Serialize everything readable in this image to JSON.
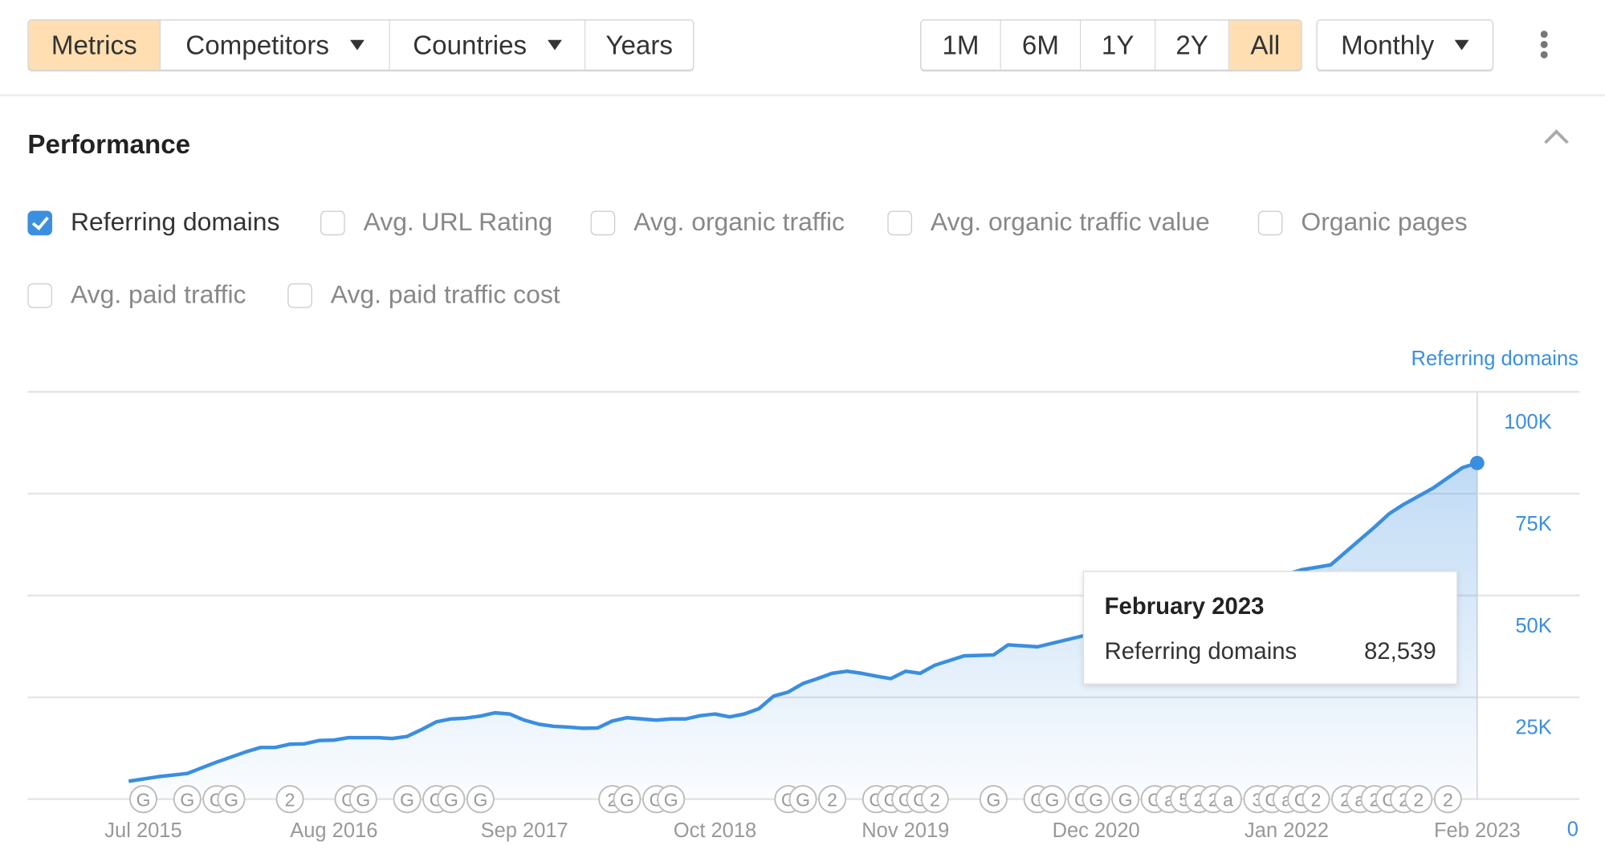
{
  "toolbar": {
    "view_tabs": [
      {
        "label": "Metrics",
        "active": true
      },
      {
        "label": "Competitors",
        "dropdown": true
      },
      {
        "label": "Countries",
        "dropdown": true
      },
      {
        "label": "Years"
      }
    ],
    "ranges": [
      {
        "label": "1M"
      },
      {
        "label": "6M"
      },
      {
        "label": "1Y"
      },
      {
        "label": "2Y"
      },
      {
        "label": "All",
        "active": true
      }
    ],
    "interval": "Monthly",
    "more_icon": "kebab-vertical-icon",
    "active_color": "#ffdfb2"
  },
  "panel": {
    "title": "Performance",
    "collapse_icon": "chevron-up-icon",
    "metrics": [
      {
        "label": "Referring domains",
        "checked": true
      },
      {
        "label": "Avg. URL Rating",
        "checked": false
      },
      {
        "label": "Avg. organic traffic",
        "checked": false
      },
      {
        "label": "Avg. organic traffic value",
        "checked": false
      },
      {
        "label": "Organic pages",
        "checked": false
      },
      {
        "label": "Avg. paid traffic",
        "checked": false
      },
      {
        "label": "Avg. paid traffic cost",
        "checked": false
      }
    ]
  },
  "chart_data": {
    "type": "area",
    "ylabel": "Referring domains",
    "ylim": [
      0,
      100000
    ],
    "y_ticks": [
      "0",
      "25K",
      "50K",
      "75K",
      "100K"
    ],
    "y_tick_values": [
      0,
      25000,
      50000,
      75000,
      100000
    ],
    "x_ticks": [
      "Jul 2015",
      "Aug 2016",
      "Sep 2017",
      "Oct 2018",
      "Nov 2019",
      "Dec 2020",
      "Jan 2022",
      "Feb 2023"
    ],
    "x_tick_dates": [
      "2015-07",
      "2016-08",
      "2017-09",
      "2018-10",
      "2019-11",
      "2020-12",
      "2022-01",
      "2023-02"
    ],
    "grid": true,
    "color": "#3a8ee0",
    "series": [
      {
        "name": "Referring domains",
        "points": [
          [
            "2015-06",
            4400
          ],
          [
            "2015-08",
            5500
          ],
          [
            "2015-10",
            6300
          ],
          [
            "2015-12",
            9100
          ],
          [
            "2016-02",
            11600
          ],
          [
            "2016-03",
            12700
          ],
          [
            "2016-04",
            12700
          ],
          [
            "2016-05",
            13500
          ],
          [
            "2016-06",
            13600
          ],
          [
            "2016-07",
            14400
          ],
          [
            "2016-08",
            14500
          ],
          [
            "2016-09",
            15100
          ],
          [
            "2016-11",
            15100
          ],
          [
            "2016-12",
            14900
          ],
          [
            "2017-01",
            15400
          ],
          [
            "2017-02",
            17100
          ],
          [
            "2017-03",
            19000
          ],
          [
            "2017-04",
            19700
          ],
          [
            "2017-05",
            19900
          ],
          [
            "2017-06",
            20400
          ],
          [
            "2017-07",
            21200
          ],
          [
            "2017-08",
            20900
          ],
          [
            "2017-09",
            19400
          ],
          [
            "2017-10",
            18400
          ],
          [
            "2017-11",
            17900
          ],
          [
            "2017-12",
            17700
          ],
          [
            "2018-01",
            17400
          ],
          [
            "2018-02",
            17500
          ],
          [
            "2018-03",
            19200
          ],
          [
            "2018-04",
            20000
          ],
          [
            "2018-05",
            19700
          ],
          [
            "2018-06",
            19400
          ],
          [
            "2018-07",
            19700
          ],
          [
            "2018-08",
            19700
          ],
          [
            "2018-09",
            20500
          ],
          [
            "2018-10",
            20900
          ],
          [
            "2018-11",
            20200
          ],
          [
            "2018-12",
            20900
          ],
          [
            "2019-01",
            22200
          ],
          [
            "2019-02",
            25300
          ],
          [
            "2019-03",
            26300
          ],
          [
            "2019-04",
            28400
          ],
          [
            "2019-05",
            29600
          ],
          [
            "2019-06",
            30900
          ],
          [
            "2019-07",
            31400
          ],
          [
            "2019-08",
            30900
          ],
          [
            "2019-09",
            30200
          ],
          [
            "2019-10",
            29600
          ],
          [
            "2019-11",
            31400
          ],
          [
            "2019-12",
            30900
          ],
          [
            "2020-01",
            32900
          ],
          [
            "2020-03",
            35200
          ],
          [
            "2020-05",
            35400
          ],
          [
            "2020-06",
            37900
          ],
          [
            "2020-08",
            37400
          ],
          [
            "2020-11",
            40000
          ],
          [
            "2021-03",
            44000
          ],
          [
            "2021-07",
            48000
          ],
          [
            "2021-11",
            53000
          ],
          [
            "2022-02",
            56300
          ],
          [
            "2022-04",
            57500
          ],
          [
            "2022-05",
            60600
          ],
          [
            "2022-07",
            66800
          ],
          [
            "2022-08",
            70100
          ],
          [
            "2022-09",
            72400
          ],
          [
            "2022-11",
            76400
          ],
          [
            "2023-01",
            81400
          ],
          [
            "2023-02",
            82539
          ]
        ]
      }
    ],
    "annotations": [
      [
        "2015-07",
        "G"
      ],
      [
        "2015-10",
        "G"
      ],
      [
        "2015-12",
        "G"
      ],
      [
        "2016-01",
        "G"
      ],
      [
        "2016-05",
        "2"
      ],
      [
        "2016-09",
        "G"
      ],
      [
        "2016-10",
        "G"
      ],
      [
        "2017-01",
        "G"
      ],
      [
        "2017-03",
        "G"
      ],
      [
        "2017-04",
        "G"
      ],
      [
        "2017-06",
        "G"
      ],
      [
        "2018-03",
        "2"
      ],
      [
        "2018-04",
        "G"
      ],
      [
        "2018-06",
        "G"
      ],
      [
        "2018-07",
        "G"
      ],
      [
        "2019-03",
        "G"
      ],
      [
        "2019-04",
        "G"
      ],
      [
        "2019-06",
        "2"
      ],
      [
        "2019-09",
        "G"
      ],
      [
        "2019-10",
        "G"
      ],
      [
        "2019-11",
        "G"
      ],
      [
        "2019-12",
        "G"
      ],
      [
        "2020-01",
        "2"
      ],
      [
        "2020-05",
        "G"
      ],
      [
        "2020-08",
        "G"
      ],
      [
        "2020-09",
        "G"
      ],
      [
        "2020-11",
        "G"
      ],
      [
        "2020-12",
        "G"
      ],
      [
        "2021-02",
        "G"
      ],
      [
        "2021-04",
        "G"
      ],
      [
        "2021-05",
        "a"
      ],
      [
        "2021-06",
        "5"
      ],
      [
        "2021-07",
        "2"
      ],
      [
        "2021-08",
        "2"
      ],
      [
        "2021-09",
        "a"
      ],
      [
        "2021-11",
        "3"
      ],
      [
        "2021-12",
        "G"
      ],
      [
        "2022-01",
        "a"
      ],
      [
        "2022-02",
        "G"
      ],
      [
        "2022-03",
        "2"
      ],
      [
        "2022-05",
        "2"
      ],
      [
        "2022-06",
        "a"
      ],
      [
        "2022-07",
        "2"
      ],
      [
        "2022-08",
        "G"
      ],
      [
        "2022-09",
        "2"
      ],
      [
        "2022-10",
        "2"
      ],
      [
        "2022-12",
        "2"
      ]
    ],
    "tooltip": {
      "title": "February 2023",
      "label": "Referring domains",
      "value": "82,539"
    }
  }
}
